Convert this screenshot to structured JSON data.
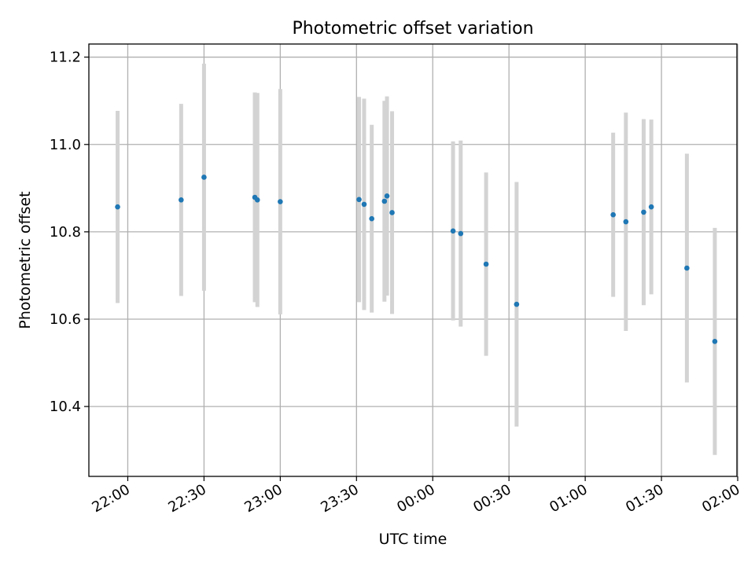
{
  "chart_data": {
    "type": "scatter",
    "title": "Photometric offset variation",
    "xlabel": "UTC time",
    "ylabel": "Photometric offset",
    "x_unit": "time of day (UTC)",
    "xlim": [
      "21:45",
      "02:00"
    ],
    "ylim": [
      10.24,
      11.23
    ],
    "x_ticks": [
      "22:00",
      "22:30",
      "23:00",
      "23:30",
      "00:00",
      "00:30",
      "01:00",
      "01:30",
      "02:00"
    ],
    "y_ticks": [
      10.4,
      10.6,
      10.8,
      11.0,
      11.2
    ],
    "y_tick_labels": [
      "10.4",
      "10.6",
      "10.8",
      "11.0",
      "11.2"
    ],
    "grid": true,
    "marker_color": "#1f77b4",
    "errorbar_color": "#d3d3d3",
    "points": [
      {
        "x": "21:56",
        "y": 10.857,
        "err": 0.22
      },
      {
        "x": "22:21",
        "y": 10.873,
        "err": 0.22
      },
      {
        "x": "22:30",
        "y": 10.925,
        "err": 0.26
      },
      {
        "x": "22:50",
        "y": 10.879,
        "err": 0.24
      },
      {
        "x": "22:51",
        "y": 10.873,
        "err": 0.245
      },
      {
        "x": "23:00",
        "y": 10.869,
        "err": 0.258
      },
      {
        "x": "23:31",
        "y": 10.874,
        "err": 0.235
      },
      {
        "x": "23:33",
        "y": 10.863,
        "err": 0.242
      },
      {
        "x": "23:36",
        "y": 10.83,
        "err": 0.215
      },
      {
        "x": "23:41",
        "y": 10.87,
        "err": 0.23
      },
      {
        "x": "23:42",
        "y": 10.882,
        "err": 0.228
      },
      {
        "x": "23:44",
        "y": 10.844,
        "err": 0.232
      },
      {
        "x": "00:08",
        "y": 10.802,
        "err": 0.205
      },
      {
        "x": "00:11",
        "y": 10.796,
        "err": 0.213
      },
      {
        "x": "00:21",
        "y": 10.726,
        "err": 0.21
      },
      {
        "x": "00:33",
        "y": 10.634,
        "err": 0.28
      },
      {
        "x": "01:11",
        "y": 10.839,
        "err": 0.188
      },
      {
        "x": "01:16",
        "y": 10.823,
        "err": 0.25
      },
      {
        "x": "01:23",
        "y": 10.845,
        "err": 0.213
      },
      {
        "x": "01:26",
        "y": 10.857,
        "err": 0.2
      },
      {
        "x": "01:40",
        "y": 10.717,
        "err": 0.262
      },
      {
        "x": "01:51",
        "y": 10.549,
        "err": 0.26
      }
    ]
  }
}
